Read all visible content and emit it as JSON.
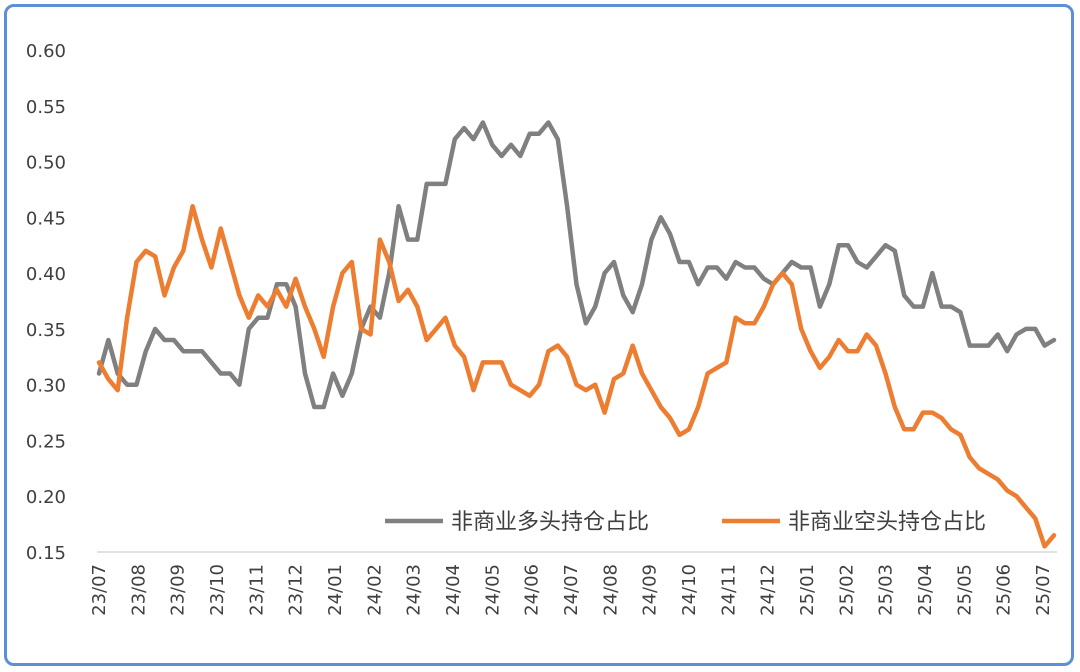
{
  "chart_data": {
    "type": "line",
    "title": "",
    "xlabel": "",
    "ylabel": "",
    "ylim": [
      0.15,
      0.6
    ],
    "yticks": [
      "0.60",
      "0.55",
      "0.50",
      "0.45",
      "0.40",
      "0.35",
      "0.30",
      "0.25",
      "0.20",
      "0.15"
    ],
    "xticks": [
      "23/07",
      "23/08",
      "23/09",
      "23/10",
      "23/11",
      "23/12",
      "24/01",
      "24/02",
      "24/03",
      "24/04",
      "24/05",
      "24/06",
      "24/07",
      "24/08",
      "24/09",
      "24/10",
      "24/11",
      "24/12",
      "25/01",
      "25/02",
      "25/03",
      "25/04",
      "25/05",
      "25/06",
      "25/07"
    ],
    "grid": false,
    "legend": "bottom-right inside",
    "series": [
      {
        "name": "非商业多头持仓占比",
        "color": "#808080",
        "values": [
          0.31,
          0.34,
          0.31,
          0.3,
          0.3,
          0.33,
          0.35,
          0.34,
          0.34,
          0.33,
          0.33,
          0.33,
          0.32,
          0.31,
          0.31,
          0.3,
          0.35,
          0.36,
          0.36,
          0.39,
          0.39,
          0.37,
          0.31,
          0.28,
          0.28,
          0.31,
          0.29,
          0.31,
          0.35,
          0.37,
          0.36,
          0.4,
          0.46,
          0.43,
          0.43,
          0.48,
          0.48,
          0.48,
          0.52,
          0.53,
          0.52,
          0.535,
          0.515,
          0.505,
          0.515,
          0.505,
          0.525,
          0.525,
          0.535,
          0.52,
          0.46,
          0.39,
          0.355,
          0.37,
          0.4,
          0.41,
          0.38,
          0.365,
          0.39,
          0.43,
          0.45,
          0.435,
          0.41,
          0.41,
          0.39,
          0.405,
          0.405,
          0.395,
          0.41,
          0.405,
          0.405,
          0.395,
          0.39,
          0.4,
          0.41,
          0.405,
          0.405,
          0.37,
          0.39,
          0.425,
          0.425,
          0.41,
          0.405,
          0.415,
          0.425,
          0.42,
          0.38,
          0.37,
          0.37,
          0.4,
          0.37,
          0.37,
          0.365,
          0.335,
          0.335,
          0.335,
          0.345,
          0.33,
          0.345,
          0.35,
          0.35,
          0.335,
          0.34
        ]
      },
      {
        "name": "非商业空头持仓占比",
        "color": "#ed7d31",
        "values": [
          0.32,
          0.305,
          0.295,
          0.36,
          0.41,
          0.42,
          0.415,
          0.38,
          0.405,
          0.42,
          0.46,
          0.43,
          0.405,
          0.44,
          0.41,
          0.38,
          0.36,
          0.38,
          0.37,
          0.385,
          0.37,
          0.395,
          0.37,
          0.35,
          0.325,
          0.37,
          0.4,
          0.41,
          0.35,
          0.345,
          0.43,
          0.41,
          0.375,
          0.385,
          0.37,
          0.34,
          0.35,
          0.36,
          0.335,
          0.325,
          0.295,
          0.32,
          0.32,
          0.32,
          0.3,
          0.295,
          0.29,
          0.3,
          0.33,
          0.335,
          0.325,
          0.3,
          0.295,
          0.3,
          0.275,
          0.305,
          0.31,
          0.335,
          0.31,
          0.295,
          0.28,
          0.27,
          0.255,
          0.26,
          0.28,
          0.31,
          0.315,
          0.32,
          0.36,
          0.355,
          0.355,
          0.37,
          0.39,
          0.4,
          0.39,
          0.35,
          0.33,
          0.315,
          0.325,
          0.34,
          0.33,
          0.33,
          0.345,
          0.335,
          0.31,
          0.28,
          0.26,
          0.26,
          0.275,
          0.275,
          0.27,
          0.26,
          0.255,
          0.235,
          0.225,
          0.22,
          0.215,
          0.205,
          0.2,
          0.19,
          0.18,
          0.155,
          0.165
        ]
      }
    ]
  }
}
